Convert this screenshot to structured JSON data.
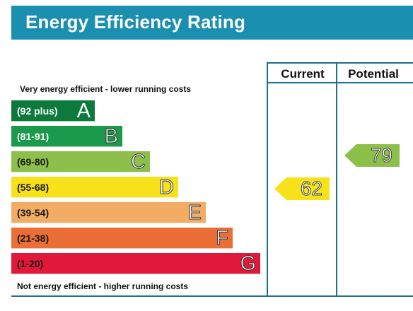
{
  "title": "Energy Efficiency Rating",
  "columns": {
    "current": "Current",
    "potential": "Potential"
  },
  "notes": {
    "top": "Very energy efficient - lower running costs",
    "bottom": "Not energy efficient - higher running costs"
  },
  "bands": [
    {
      "letter": "A",
      "range": "(92 plus)",
      "color": "#0b7a3b",
      "text_color": "#ffffff"
    },
    {
      "letter": "B",
      "range": "(81-91)",
      "color": "#1a9a4a",
      "text_color": "#ffffff"
    },
    {
      "letter": "C",
      "range": "(69-80)",
      "color": "#8dc04a",
      "text_color": "#1a1a1a"
    },
    {
      "letter": "D",
      "range": "(55-68)",
      "color": "#f7e11a",
      "text_color": "#1a1a1a"
    },
    {
      "letter": "E",
      "range": "(39-54)",
      "color": "#f2ac63",
      "text_color": "#1a1a1a"
    },
    {
      "letter": "F",
      "range": "(21-38)",
      "color": "#ea6e35",
      "text_color": "#1a1a1a"
    },
    {
      "letter": "G",
      "range": "(1-20)",
      "color": "#e2183a",
      "text_color": "#1a1a1a"
    }
  ],
  "ratings": {
    "current": {
      "value": "62",
      "band": "D",
      "color": "#f7e11a"
    },
    "potential": {
      "value": "79",
      "band": "C",
      "color": "#8dc04a"
    }
  }
}
